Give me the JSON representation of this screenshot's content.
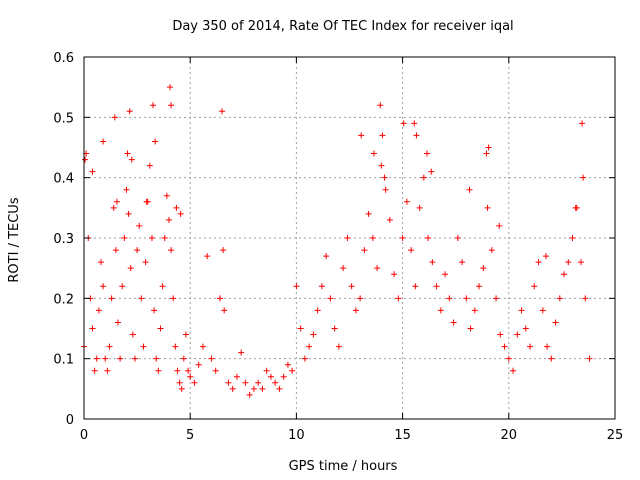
{
  "chart_data": {
    "type": "scatter",
    "title": "Day 350 of 2014, Rate Of TEC Index for receiver iqal",
    "xlabel": "GPS time / hours",
    "ylabel": "ROTI / TECUs",
    "xlim": [
      0,
      25
    ],
    "ylim": [
      0,
      0.6
    ],
    "xticks": [
      0,
      5,
      10,
      15,
      20,
      25
    ],
    "yticks": [
      0,
      0.1,
      0.2,
      0.3,
      0.4,
      0.5,
      0.6
    ],
    "xtick_labels": [
      "0",
      "5",
      "10",
      "15",
      "20",
      "25"
    ],
    "ytick_labels": [
      "0",
      "0.1",
      "0.2",
      "0.3",
      "0.4",
      "0.5",
      "0.6"
    ],
    "grid": true,
    "marker": "+",
    "series": [
      {
        "name": "ROTI",
        "color": "#ff0000",
        "x": [
          0.0,
          0.1,
          0.2,
          0.3,
          0.4,
          0.5,
          0.6,
          0.7,
          0.8,
          0.9,
          1.0,
          1.1,
          1.2,
          1.3,
          1.4,
          1.5,
          1.6,
          1.7,
          1.8,
          1.9,
          2.0,
          2.1,
          2.2,
          2.3,
          2.4,
          2.5,
          2.6,
          2.7,
          2.8,
          2.9,
          3.0,
          3.1,
          3.2,
          3.3,
          3.4,
          3.5,
          3.6,
          3.7,
          3.8,
          3.9,
          4.0,
          4.1,
          4.2,
          4.3,
          4.4,
          4.5,
          4.6,
          4.7,
          4.8,
          4.9,
          5.0,
          5.2,
          5.4,
          5.6,
          5.8,
          6.0,
          6.2,
          6.4,
          6.6,
          6.8,
          7.0,
          7.2,
          7.4,
          7.6,
          7.8,
          8.0,
          8.2,
          8.4,
          8.6,
          8.8,
          9.0,
          9.2,
          9.4,
          9.6,
          9.8,
          10.0,
          10.2,
          10.4,
          10.6,
          10.8,
          11.0,
          11.2,
          11.4,
          11.6,
          11.8,
          12.0,
          12.2,
          12.4,
          12.6,
          12.8,
          13.0,
          13.2,
          13.4,
          13.6,
          13.8,
          14.0,
          14.2,
          14.4,
          14.6,
          14.8,
          15.0,
          15.2,
          15.4,
          15.6,
          15.8,
          16.0,
          16.2,
          16.4,
          16.6,
          16.8,
          17.0,
          17.2,
          17.4,
          17.6,
          17.8,
          18.0,
          18.2,
          18.4,
          18.6,
          18.8,
          19.0,
          19.2,
          19.4,
          19.6,
          19.8,
          20.0,
          20.2,
          20.4,
          20.6,
          20.8,
          21.0,
          21.2,
          21.4,
          21.6,
          21.8,
          22.0,
          22.2,
          22.4,
          22.6,
          22.8,
          23.0,
          23.2,
          23.4,
          23.6,
          23.8,
          0.05,
          0.4,
          0.9,
          1.45,
          1.55,
          2.05,
          2.15,
          2.25,
          2.95,
          3.25,
          3.35,
          4.05,
          4.1,
          4.35,
          4.55,
          6.5,
          6.55,
          13.05,
          13.65,
          13.95,
          14.05,
          14.15,
          15.05,
          15.55,
          15.65,
          16.15,
          16.35,
          18.15,
          18.95,
          19.05,
          19.55,
          21.75,
          23.15,
          23.45,
          23.5
        ],
        "y": [
          0.12,
          0.44,
          0.3,
          0.2,
          0.15,
          0.08,
          0.1,
          0.18,
          0.26,
          0.22,
          0.1,
          0.08,
          0.12,
          0.2,
          0.35,
          0.28,
          0.16,
          0.1,
          0.22,
          0.3,
          0.38,
          0.34,
          0.25,
          0.14,
          0.1,
          0.28,
          0.32,
          0.2,
          0.12,
          0.26,
          0.36,
          0.42,
          0.3,
          0.18,
          0.1,
          0.08,
          0.15,
          0.22,
          0.3,
          0.37,
          0.33,
          0.28,
          0.2,
          0.12,
          0.08,
          0.06,
          0.05,
          0.1,
          0.14,
          0.08,
          0.07,
          0.06,
          0.09,
          0.12,
          0.27,
          0.1,
          0.08,
          0.2,
          0.18,
          0.06,
          0.05,
          0.07,
          0.11,
          0.06,
          0.04,
          0.05,
          0.06,
          0.05,
          0.08,
          0.07,
          0.06,
          0.05,
          0.07,
          0.09,
          0.08,
          0.22,
          0.15,
          0.1,
          0.12,
          0.14,
          0.18,
          0.22,
          0.27,
          0.2,
          0.15,
          0.12,
          0.25,
          0.3,
          0.22,
          0.18,
          0.2,
          0.28,
          0.34,
          0.3,
          0.25,
          0.42,
          0.38,
          0.33,
          0.24,
          0.2,
          0.3,
          0.36,
          0.28,
          0.22,
          0.35,
          0.4,
          0.3,
          0.26,
          0.22,
          0.18,
          0.24,
          0.2,
          0.16,
          0.3,
          0.26,
          0.2,
          0.15,
          0.18,
          0.22,
          0.25,
          0.35,
          0.28,
          0.2,
          0.14,
          0.12,
          0.1,
          0.08,
          0.14,
          0.18,
          0.15,
          0.12,
          0.22,
          0.26,
          0.18,
          0.12,
          0.1,
          0.16,
          0.2,
          0.24,
          0.26,
          0.3,
          0.35,
          0.26,
          0.2,
          0.1,
          0.43,
          0.41,
          0.46,
          0.5,
          0.36,
          0.44,
          0.51,
          0.43,
          0.36,
          0.52,
          0.46,
          0.55,
          0.52,
          0.35,
          0.34,
          0.51,
          0.28,
          0.47,
          0.44,
          0.52,
          0.47,
          0.4,
          0.49,
          0.49,
          0.47,
          0.44,
          0.41,
          0.38,
          0.44,
          0.45,
          0.32,
          0.27,
          0.35,
          0.49,
          0.4
        ]
      }
    ]
  }
}
